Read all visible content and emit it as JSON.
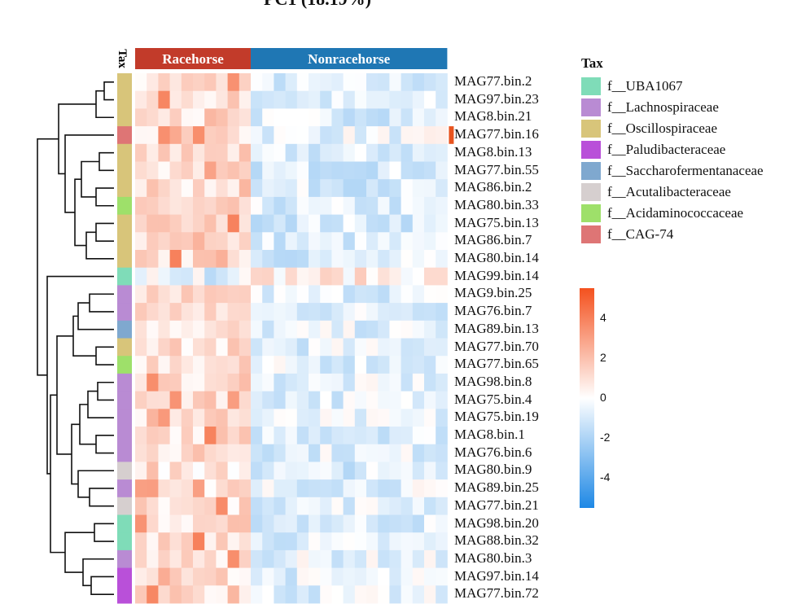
{
  "title": "PC1 (18.19%)",
  "tax_track_label": "Tax",
  "groups": [
    {
      "name": "Racehorse",
      "color": "#c23b2a",
      "n_cols": 10
    },
    {
      "name": "Nonracehorse",
      "color": "#1f77b4",
      "n_cols": 17
    }
  ],
  "legend": {
    "title": "Tax",
    "items": [
      {
        "label": "f__UBA1067",
        "color": "#7fdcb8"
      },
      {
        "label": "f__Lachnospiraceae",
        "color": "#b98bd3"
      },
      {
        "label": "f__Oscillospiraceae",
        "color": "#d8c57a"
      },
      {
        "label": "f__Paludibacteraceae",
        "color": "#b950d9"
      },
      {
        "label": "f__Saccharofermentanaceae",
        "color": "#7fa8cf"
      },
      {
        "label": "f__Acutalibacteraceae",
        "color": "#d6cfcf"
      },
      {
        "label": "f__Acidaminococcaceae",
        "color": "#9ee06a"
      },
      {
        "label": "f__CAG-74",
        "color": "#de7575"
      }
    ]
  },
  "colorbar": {
    "ticks": [
      4,
      2,
      0,
      -2,
      -4
    ],
    "min": -5.5,
    "max": 5.5,
    "low_color": "#1e88e5",
    "mid_color": "#ffffff",
    "high_color": "#f4511e"
  },
  "chart_data": {
    "type": "heatmap",
    "title": "PC1 (18.19%)",
    "columns_group_counts": {
      "Racehorse": 10,
      "Nonracehorse": 17
    },
    "value_range": [
      -5,
      5
    ],
    "rows": [
      {
        "label": "MAG77.bin.2",
        "tax": "f__Oscillospiraceae",
        "mean_racehorse": 1.0,
        "mean_nonracehorse": -0.8
      },
      {
        "label": "MAG97.bin.23",
        "tax": "f__Oscillospiraceae",
        "mean_racehorse": 1.0,
        "mean_nonracehorse": -0.8
      },
      {
        "label": "MAG8.bin.21",
        "tax": "f__Oscillospiraceae",
        "mean_racehorse": 0.9,
        "mean_nonracehorse": -0.7
      },
      {
        "label": "MAG77.bin.16",
        "tax": "f__CAG-74",
        "mean_racehorse": 0.7,
        "mean_nonracehorse": -0.4
      },
      {
        "label": "MAG8.bin.13",
        "tax": "f__Oscillospiraceae",
        "mean_racehorse": 1.0,
        "mean_nonracehorse": -0.8
      },
      {
        "label": "MAG77.bin.55",
        "tax": "f__Oscillospiraceae",
        "mean_racehorse": 1.0,
        "mean_nonracehorse": -0.8
      },
      {
        "label": "MAG86.bin.2",
        "tax": "f__Oscillospiraceae",
        "mean_racehorse": 0.9,
        "mean_nonracehorse": -0.8
      },
      {
        "label": "MAG80.bin.33",
        "tax": "f__Acidaminococcaceae",
        "mean_racehorse": 0.9,
        "mean_nonracehorse": -0.8
      },
      {
        "label": "MAG75.bin.13",
        "tax": "f__Oscillospiraceae",
        "mean_racehorse": 1.1,
        "mean_nonracehorse": -0.8
      },
      {
        "label": "MAG86.bin.7",
        "tax": "f__Oscillospiraceae",
        "mean_racehorse": 1.1,
        "mean_nonracehorse": -0.8
      },
      {
        "label": "MAG80.bin.14",
        "tax": "f__Oscillospiraceae",
        "mean_racehorse": 1.0,
        "mean_nonracehorse": -0.8
      },
      {
        "label": "MAG99.bin.14",
        "tax": "f__UBA1067",
        "mean_racehorse": -0.8,
        "mean_nonracehorse": 0.6
      },
      {
        "label": "MAG9.bin.25",
        "tax": "f__Lachnospiraceae",
        "mean_racehorse": 1.0,
        "mean_nonracehorse": -0.6
      },
      {
        "label": "MAG76.bin.7",
        "tax": "f__Lachnospiraceae",
        "mean_racehorse": 1.0,
        "mean_nonracehorse": -0.6
      },
      {
        "label": "MAG89.bin.13",
        "tax": "f__Saccharofermentanaceae",
        "mean_racehorse": 0.9,
        "mean_nonracehorse": -0.6
      },
      {
        "label": "MAG77.bin.70",
        "tax": "f__Oscillospiraceae",
        "mean_racehorse": 0.9,
        "mean_nonracehorse": -0.6
      },
      {
        "label": "MAG77.bin.65",
        "tax": "f__Acidaminococcaceae",
        "mean_racehorse": 1.0,
        "mean_nonracehorse": -0.6
      },
      {
        "label": "MAG98.bin.8",
        "tax": "f__Lachnospiraceae",
        "mean_racehorse": 1.0,
        "mean_nonracehorse": -0.6
      },
      {
        "label": "MAG75.bin.4",
        "tax": "f__Lachnospiraceae",
        "mean_racehorse": 1.0,
        "mean_nonracehorse": -0.6
      },
      {
        "label": "MAG75.bin.19",
        "tax": "f__Lachnospiraceae",
        "mean_racehorse": 1.1,
        "mean_nonracehorse": -0.6
      },
      {
        "label": "MAG8.bin.1",
        "tax": "f__Lachnospiraceae",
        "mean_racehorse": 1.0,
        "mean_nonracehorse": -0.6
      },
      {
        "label": "MAG76.bin.6",
        "tax": "f__Lachnospiraceae",
        "mean_racehorse": 1.0,
        "mean_nonracehorse": -0.6
      },
      {
        "label": "MAG80.bin.9",
        "tax": "f__Acutalibacteraceae",
        "mean_racehorse": 0.6,
        "mean_nonracehorse": -0.8
      },
      {
        "label": "MAG89.bin.25",
        "tax": "f__Lachnospiraceae",
        "mean_racehorse": 0.9,
        "mean_nonracehorse": -0.5
      },
      {
        "label": "MAG77.bin.21",
        "tax": "f__Acutalibacteraceae",
        "mean_racehorse": 0.9,
        "mean_nonracehorse": -0.5
      },
      {
        "label": "MAG98.bin.20",
        "tax": "f__UBA1067",
        "mean_racehorse": 1.0,
        "mean_nonracehorse": -0.7
      },
      {
        "label": "MAG88.bin.32",
        "tax": "f__UBA1067",
        "mean_racehorse": 1.0,
        "mean_nonracehorse": -0.7
      },
      {
        "label": "MAG80.bin.3",
        "tax": "f__Lachnospiraceae",
        "mean_racehorse": 0.9,
        "mean_nonracehorse": -0.5
      },
      {
        "label": "MAG97.bin.14",
        "tax": "f__Paludibacteraceae",
        "mean_racehorse": 1.0,
        "mean_nonracehorse": -0.6
      },
      {
        "label": "MAG77.bin.72",
        "tax": "f__Paludibacteraceae",
        "mean_racehorse": 1.0,
        "mean_nonracehorse": -0.6
      }
    ]
  }
}
